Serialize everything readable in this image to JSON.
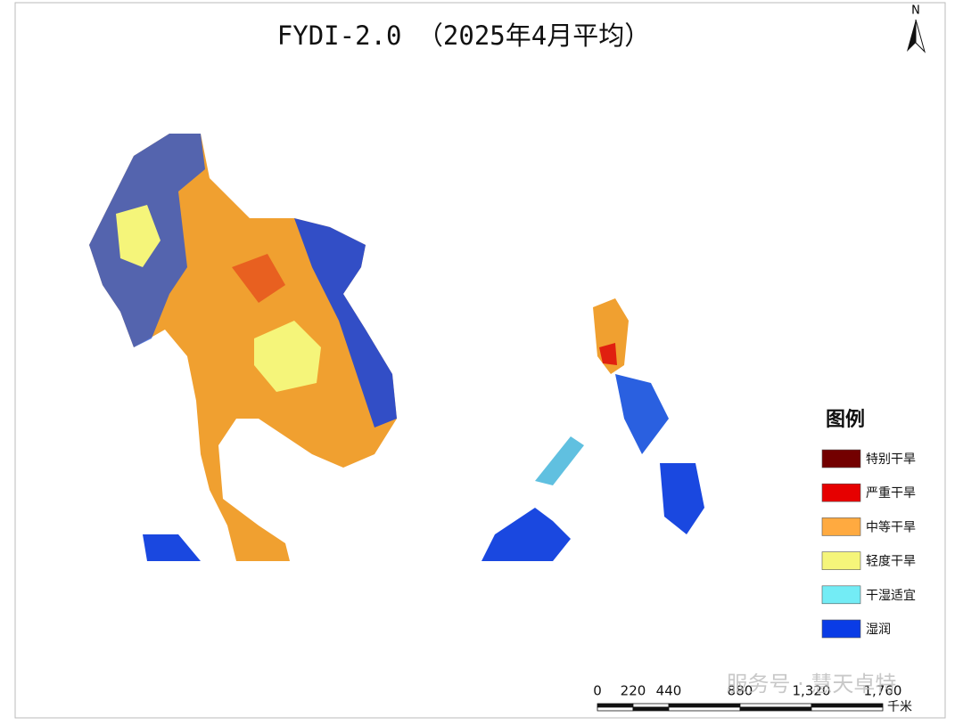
{
  "header": {
    "title": "FYDI-2.0 （2025年4月平均）"
  },
  "north_arrow": {
    "label": "N"
  },
  "legend": {
    "title": "图例",
    "items": [
      {
        "label": "特别干旱",
        "color": "#730000"
      },
      {
        "label": "严重干旱",
        "color": "#e60000"
      },
      {
        "label": "中等干旱",
        "color": "#ffaa40"
      },
      {
        "label": "轻度干旱",
        "color": "#f5f57a"
      },
      {
        "label": "干湿适宜",
        "color": "#73ecf5"
      },
      {
        "label": "湿润",
        "color": "#0a3ce6"
      }
    ]
  },
  "scale_bar": {
    "labels": [
      "0",
      "220",
      "440",
      "880",
      "1,320",
      "1,760"
    ],
    "unit": "千米"
  },
  "watermark": "服务号 · 慧天卓特"
}
